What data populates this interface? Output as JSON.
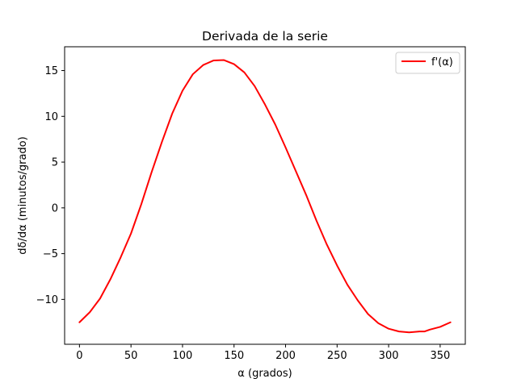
{
  "chart_data": {
    "type": "line",
    "title": "Derivada de la serie",
    "xlabel": "α (grados)",
    "ylabel": "dδ/dα (minutos/grado)",
    "xlim": [
      -14.4,
      374.4
    ],
    "ylim": [
      -14.9,
      17.6
    ],
    "xticks": [
      0,
      50,
      100,
      150,
      200,
      250,
      300,
      350
    ],
    "yticks": [
      -10,
      -5,
      0,
      5,
      10,
      15
    ],
    "ytick_labels": [
      "−10",
      "−5",
      "0",
      "5",
      "10",
      "15"
    ],
    "grid": false,
    "legend_position": "top-right",
    "series": [
      {
        "name": "f'(α)",
        "color": "#ff0000",
        "x": [
          0,
          10,
          20,
          30,
          40,
          50,
          60,
          70,
          80,
          90,
          100,
          110,
          120,
          130,
          140,
          150,
          160,
          170,
          180,
          190,
          200,
          210,
          220,
          230,
          240,
          250,
          260,
          270,
          280,
          290,
          300,
          310,
          320,
          330,
          335,
          340,
          350,
          360
        ],
        "y": [
          -12.5,
          -11.4,
          -9.9,
          -7.8,
          -5.4,
          -2.8,
          0.4,
          3.9,
          7.2,
          10.3,
          12.8,
          14.6,
          15.6,
          16.1,
          16.15,
          15.7,
          14.8,
          13.3,
          11.3,
          9.1,
          6.6,
          4.0,
          1.4,
          -1.4,
          -4.0,
          -6.3,
          -8.4,
          -10.1,
          -11.6,
          -12.6,
          -13.2,
          -13.5,
          -13.6,
          -13.5,
          -13.5,
          -13.3,
          -13.0,
          -12.5
        ]
      }
    ]
  }
}
